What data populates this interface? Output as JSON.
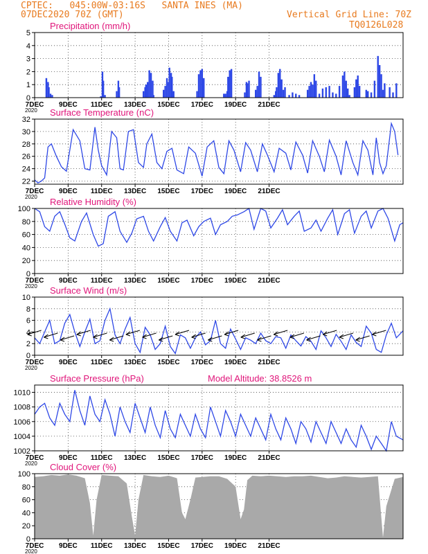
{
  "header": {
    "line1": "CPTEC:   045:00W-03:16S   SANTA INES (MA)",
    "line2": "07DEC2020 70Z (GMT)",
    "grid_note": "Vertical Grid Line: 70Z",
    "code": "TQ0126L028"
  },
  "colors": {
    "header": "#e87a1e",
    "title": "#e0157a",
    "series": "#2d47e6",
    "cloud": "#a9a9a9"
  },
  "x_ticks": [
    "7DEC",
    "9DEC",
    "11DEC",
    "13DEC",
    "15DEC",
    "17DEC",
    "19DEC",
    "21DEC"
  ],
  "x_sub_label": "2020",
  "chart_data": [
    {
      "type": "bar",
      "title": "Precipitation (mm/h)",
      "ylim": [
        0,
        5
      ],
      "y_ticks": [
        0,
        1,
        2,
        3,
        4,
        5
      ],
      "x": [
        0.7,
        0.8,
        0.85,
        0.95,
        1.05,
        3.95,
        4.05,
        4.1,
        4.2,
        4.9,
        5.0,
        5.05,
        6.5,
        6.6,
        6.65,
        6.75,
        6.85,
        6.95,
        7.05,
        7.1,
        7.7,
        7.8,
        7.9,
        8.0,
        8.05,
        8.15,
        8.2,
        8.3,
        9.7,
        9.8,
        9.9,
        10.0,
        10.1,
        11.3,
        11.4,
        11.5,
        11.55,
        11.65,
        11.75,
        12.55,
        12.65,
        12.7,
        12.8,
        13.2,
        13.3,
        13.4,
        13.5,
        14.3,
        14.4,
        14.45,
        14.55,
        14.65,
        14.75,
        14.85,
        14.95,
        15.2,
        15.4,
        15.6,
        15.8,
        16.3,
        16.4,
        16.5,
        16.6,
        16.7,
        16.8,
        17.0,
        17.2,
        17.4,
        17.6,
        17.8,
        18.0,
        18.2,
        18.4,
        18.5,
        18.6,
        18.7,
        18.8,
        19.1,
        19.2,
        19.3,
        19.4,
        19.8,
        19.9,
        20.1,
        20.3,
        20.5,
        20.6,
        20.7,
        20.8,
        20.9,
        21.2,
        21.4,
        21.6
      ],
      "values": [
        1.5,
        1.2,
        0.8,
        0.3,
        0.2,
        0.1,
        2.0,
        1.3,
        0.2,
        0.5,
        1.3,
        0.8,
        0.5,
        0.8,
        1.0,
        1.2,
        2.1,
        1.9,
        1.3,
        0.2,
        0.6,
        0.9,
        1.5,
        1.2,
        2.3,
        1.9,
        1.6,
        0.5,
        0.5,
        1.8,
        2.1,
        2.2,
        1.5,
        0.3,
        0.3,
        0.5,
        1.6,
        2.1,
        2.2,
        0.4,
        1.2,
        1.1,
        1.3,
        0.6,
        0.9,
        2.0,
        1.6,
        0.2,
        0.5,
        0.8,
        1.9,
        2.2,
        1.4,
        0.6,
        0.8,
        0.2,
        0.4,
        0.3,
        0.2,
        0.6,
        0.9,
        1.2,
        1.0,
        1.8,
        1.3,
        0.3,
        0.7,
        0.8,
        0.9,
        0.4,
        0.3,
        0.9,
        1.7,
        2.0,
        1.3,
        0.7,
        0.2,
        0.8,
        1.4,
        1.7,
        0.9,
        0.6,
        0.5,
        0.4,
        1.3,
        3.2,
        2.5,
        1.8,
        0.6,
        1.1,
        0.8,
        0.4,
        1.1
      ]
    },
    {
      "type": "line",
      "title": "Surface Temperature (nC)",
      "ylim": [
        21.5,
        32
      ],
      "y_ticks": [
        22,
        24,
        26,
        28,
        30,
        32
      ],
      "x": [
        0,
        0.2,
        0.4,
        0.6,
        0.8,
        1.0,
        1.3,
        1.6,
        1.9,
        2.1,
        2.3,
        2.7,
        3.0,
        3.3,
        3.6,
        3.8,
        4.0,
        4.3,
        4.6,
        4.9,
        5.1,
        5.3,
        5.6,
        5.9,
        6.2,
        6.5,
        6.7,
        7.0,
        7.3,
        7.6,
        7.9,
        8.2,
        8.5,
        8.9,
        9.2,
        9.6,
        10.0,
        10.3,
        10.7,
        11.0,
        11.3,
        11.6,
        11.9,
        12.3,
        12.6,
        12.9,
        13.3,
        13.6,
        13.9,
        14.3,
        14.6,
        15.0,
        15.3,
        15.6,
        16.0,
        16.3,
        16.6,
        17.0,
        17.3,
        17.6,
        18.0,
        18.3,
        18.6,
        19.0,
        19.3,
        19.6,
        19.9,
        20.2,
        20.4,
        20.6,
        20.8,
        21.0,
        21.3,
        21.5,
        21.7
      ],
      "values": [
        22.2,
        21.7,
        22.0,
        22.5,
        27.5,
        28.0,
        26.0,
        24.3,
        23.6,
        27.0,
        30.3,
        28.5,
        24.0,
        23.8,
        30.7,
        27.0,
        24.5,
        23.0,
        30.0,
        29.0,
        24.0,
        23.8,
        30.0,
        30.3,
        25.0,
        24.2,
        28.0,
        29.6,
        25.0,
        24.0,
        26.8,
        27.3,
        23.8,
        23.2,
        27.5,
        26.5,
        22.8,
        27.5,
        28.5,
        24.2,
        23.2,
        28.5,
        27.0,
        23.5,
        28.2,
        27.0,
        23.5,
        28.0,
        26.2,
        23.5,
        27.3,
        26.5,
        23.8,
        28.3,
        26.2,
        23.3,
        28.5,
        26.0,
        23.5,
        28.6,
        26.0,
        23.0,
        28.5,
        25.0,
        23.0,
        28.5,
        27.0,
        23.0,
        29.0,
        25.0,
        23.2,
        24.5,
        31.3,
        30.0,
        26.2
      ]
    },
    {
      "type": "line",
      "title": "Relative Humidity (%)",
      "ylim": [
        0,
        100
      ],
      "y_ticks": [
        0,
        20,
        40,
        60,
        80,
        100
      ],
      "x": [
        0,
        0.3,
        0.6,
        0.9,
        1.2,
        1.5,
        1.8,
        2.1,
        2.4,
        2.8,
        3.1,
        3.5,
        3.8,
        4.1,
        4.4,
        4.8,
        5.1,
        5.5,
        5.8,
        6.1,
        6.5,
        6.8,
        7.1,
        7.5,
        7.8,
        8.1,
        8.5,
        8.8,
        9.1,
        9.5,
        9.8,
        10.1,
        10.5,
        10.8,
        11.1,
        11.5,
        11.8,
        12.1,
        12.5,
        12.8,
        13.1,
        13.5,
        13.8,
        14.1,
        14.5,
        14.8,
        15.1,
        15.5,
        15.8,
        16.1,
        16.5,
        16.8,
        17.1,
        17.5,
        17.8,
        18.1,
        18.5,
        18.8,
        19.1,
        19.5,
        19.8,
        20.1,
        20.5,
        20.8,
        21.1,
        21.5,
        21.8,
        22.0
      ],
      "values": [
        100,
        95,
        72,
        65,
        88,
        95,
        76,
        55,
        50,
        80,
        93,
        60,
        42,
        46,
        88,
        95,
        65,
        48,
        62,
        84,
        88,
        65,
        50,
        72,
        86,
        65,
        50,
        78,
        82,
        58,
        72,
        80,
        85,
        60,
        75,
        80,
        88,
        90,
        95,
        100,
        68,
        100,
        96,
        70,
        85,
        98,
        75,
        88,
        96,
        65,
        70,
        82,
        65,
        85,
        98,
        60,
        92,
        98,
        62,
        88,
        96,
        70,
        96,
        100,
        85,
        50,
        75,
        78
      ]
    },
    {
      "type": "line",
      "title": "Surface Wind (m/s)",
      "ylim": [
        0,
        10
      ],
      "y_ticks": [
        0,
        2,
        4,
        6,
        8,
        10
      ],
      "x": [
        0,
        0.3,
        0.6,
        0.9,
        1.2,
        1.5,
        1.8,
        2.1,
        2.4,
        2.7,
        3.0,
        3.3,
        3.6,
        3.9,
        4.2,
        4.5,
        4.8,
        5.1,
        5.4,
        5.7,
        6.0,
        6.3,
        6.6,
        6.9,
        7.2,
        7.5,
        7.8,
        8.1,
        8.4,
        8.7,
        9.0,
        9.3,
        9.6,
        9.9,
        10.2,
        10.5,
        10.8,
        11.1,
        11.4,
        11.7,
        12.0,
        12.3,
        12.6,
        12.9,
        13.2,
        13.5,
        13.8,
        14.1,
        14.4,
        14.7,
        15.0,
        15.3,
        15.6,
        15.9,
        16.2,
        16.5,
        16.8,
        17.1,
        17.4,
        17.7,
        18.0,
        18.3,
        18.6,
        18.9,
        19.2,
        19.5,
        19.8,
        20.1,
        20.4,
        20.7,
        21.0,
        21.3,
        21.6,
        22.0
      ],
      "values": [
        3.0,
        2.0,
        4.0,
        6.0,
        2.0,
        2.5,
        5.5,
        7.0,
        4.0,
        1.5,
        4.0,
        6.2,
        2.0,
        2.5,
        6.0,
        8.0,
        3.5,
        2.0,
        4.5,
        6.5,
        2.0,
        0.5,
        4.8,
        3.5,
        1.0,
        2.0,
        5.0,
        1.5,
        0.3,
        3.5,
        3.0,
        1.2,
        3.0,
        4.0,
        1.8,
        2.5,
        6.0,
        2.0,
        1.2,
        4.5,
        2.8,
        1.0,
        3.0,
        2.6,
        2.0,
        3.8,
        2.5,
        2.0,
        3.2,
        3.0,
        1.2,
        3.5,
        2.5,
        1.6,
        3.2,
        2.4,
        1.0,
        4.2,
        3.0,
        1.5,
        3.6,
        2.4,
        1.0,
        3.5,
        2.2,
        1.5,
        5.0,
        3.8,
        1.0,
        0.5,
        3.5,
        5.5,
        3.0,
        4.2
      ]
    },
    {
      "type": "line",
      "title": "Surface Pressure (hPa)",
      "annotation": "Model Altitude: 38.8526 m",
      "ylim": [
        1002,
        1011
      ],
      "y_ticks": [
        1002,
        1004,
        1006,
        1008,
        1010
      ],
      "x": [
        0,
        0.3,
        0.6,
        0.9,
        1.2,
        1.5,
        1.8,
        2.1,
        2.4,
        2.7,
        3.0,
        3.3,
        3.6,
        3.9,
        4.2,
        4.5,
        4.8,
        5.1,
        5.4,
        5.7,
        6.0,
        6.3,
        6.6,
        6.9,
        7.2,
        7.5,
        7.8,
        8.1,
        8.4,
        8.7,
        9.0,
        9.3,
        9.6,
        9.9,
        10.2,
        10.5,
        10.8,
        11.1,
        11.4,
        11.7,
        12.0,
        12.3,
        12.6,
        12.9,
        13.2,
        13.5,
        13.8,
        14.1,
        14.4,
        14.7,
        15.0,
        15.3,
        15.6,
        15.9,
        16.2,
        16.5,
        16.8,
        17.1,
        17.4,
        17.7,
        18.0,
        18.3,
        18.6,
        18.9,
        19.2,
        19.5,
        19.8,
        20.1,
        20.4,
        20.7,
        21.0,
        21.3,
        21.6,
        22.0
      ],
      "values": [
        1007.0,
        1008.0,
        1008.5,
        1006.5,
        1005.5,
        1008.5,
        1007.0,
        1006.0,
        1010.3,
        1007.5,
        1005.5,
        1009.5,
        1007.0,
        1006.0,
        1009.0,
        1007.0,
        1004.0,
        1008.0,
        1006.0,
        1004.5,
        1008.5,
        1006.5,
        1004.5,
        1008.0,
        1005.5,
        1003.8,
        1007.5,
        1005.0,
        1003.8,
        1007.0,
        1005.5,
        1004.0,
        1007.0,
        1005.0,
        1003.8,
        1008.0,
        1006.0,
        1004.0,
        1007.5,
        1006.0,
        1004.0,
        1007.0,
        1005.5,
        1004.0,
        1006.5,
        1005.0,
        1003.5,
        1007.0,
        1005.0,
        1003.5,
        1006.5,
        1005.0,
        1003.0,
        1006.0,
        1005.0,
        1003.2,
        1006.0,
        1004.5,
        1003.0,
        1006.0,
        1004.5,
        1003.0,
        1005.0,
        1003.5,
        1002.5,
        1005.5,
        1004.0,
        1002.2,
        1004.0,
        1003.0,
        1002.0,
        1006.0,
        1004.0,
        1003.5
      ]
    },
    {
      "type": "area",
      "title": "Cloud Cover (%)",
      "ylim": [
        0,
        100
      ],
      "y_ticks": [
        0,
        20,
        40,
        60,
        80,
        100
      ],
      "x": [
        0,
        0.5,
        1.0,
        1.5,
        2.0,
        2.5,
        3.0,
        3.3,
        3.5,
        3.7,
        4.0,
        4.5,
        5.0,
        5.5,
        5.8,
        6.0,
        6.2,
        6.5,
        7.0,
        7.5,
        8.0,
        8.5,
        8.8,
        9.0,
        9.3,
        9.6,
        10.0,
        10.5,
        11.0,
        11.5,
        12.0,
        12.3,
        12.5,
        12.7,
        13.0,
        13.5,
        14.0,
        14.5,
        15.0,
        15.5,
        16.0,
        16.5,
        17.0,
        17.5,
        18.0,
        18.5,
        19.0,
        19.5,
        20.0,
        20.5,
        20.8,
        21.0,
        21.5,
        22.0
      ],
      "values": [
        95,
        96,
        98,
        97,
        99,
        97,
        93,
        55,
        5,
        60,
        98,
        97,
        96,
        85,
        35,
        5,
        60,
        98,
        96,
        95,
        97,
        93,
        40,
        30,
        60,
        94,
        95,
        96,
        96,
        92,
        80,
        30,
        45,
        90,
        97,
        96,
        97,
        96,
        95,
        96,
        96,
        97,
        95,
        93,
        94,
        96,
        95,
        94,
        95,
        96,
        2,
        50,
        92,
        95
      ]
    }
  ]
}
